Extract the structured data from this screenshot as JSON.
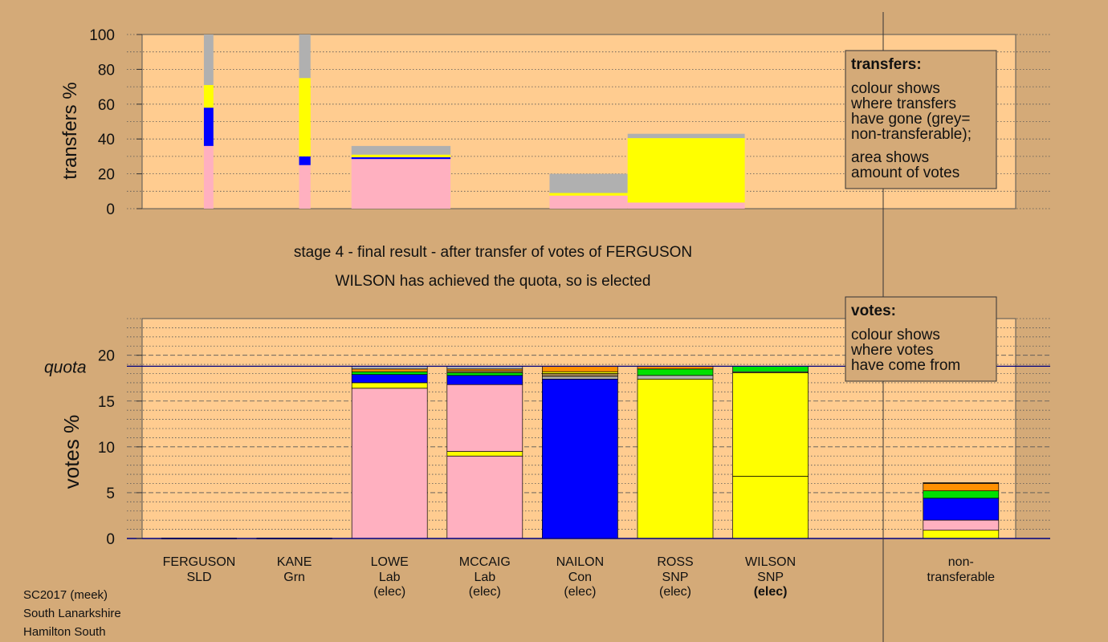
{
  "colors": {
    "background": "#d4aa78",
    "plot_bg": "#ffcc90",
    "pink": "#ffb0c0",
    "blue": "#0000ff",
    "yellow": "#ffff00",
    "grey": "#b0b0b0",
    "green": "#00e000",
    "orange": "#ff9000",
    "brown": "#a08050",
    "quota_line": "#000080"
  },
  "title_lines": [
    "stage 4 - final result - after transfer of votes of FERGUSON",
    "WILSON has achieved the quota, so is elected"
  ],
  "legend_transfers": {
    "heading": "transfers:",
    "lines": [
      "colour shows",
      "where transfers",
      "have gone (grey=",
      "non-transferable);"
    ],
    "lines2": [
      "area shows",
      "amount of votes"
    ]
  },
  "legend_votes": {
    "heading": "votes:",
    "lines": [
      "colour shows",
      "where votes",
      "have come from"
    ]
  },
  "footer": [
    "SC2017 (meek)",
    "South Lanarkshire",
    "Hamilton South"
  ],
  "chart_data": [
    {
      "type": "bar",
      "name": "transfers",
      "ylabel": "transfers %",
      "ylim": [
        0,
        100
      ],
      "yticks": [
        0,
        20,
        40,
        60,
        80,
        100
      ],
      "bars": [
        {
          "x_from": 0.55,
          "x_to": 0.65,
          "segments": [
            {
              "color": "pink",
              "from": 0,
              "to": 36
            },
            {
              "color": "blue",
              "from": 36,
              "to": 58
            },
            {
              "color": "yellow",
              "from": 58,
              "to": 71
            },
            {
              "color": "grey",
              "from": 71,
              "to": 100
            }
          ]
        },
        {
          "x_from": 1.55,
          "x_to": 1.67,
          "segments": [
            {
              "color": "pink",
              "from": 0,
              "to": 25
            },
            {
              "color": "blue",
              "from": 25,
              "to": 30
            },
            {
              "color": "yellow",
              "from": 30,
              "to": 75
            },
            {
              "color": "grey",
              "from": 75,
              "to": 100
            }
          ]
        },
        {
          "x_from": 2.1,
          "x_to": 3.14,
          "segments": [
            {
              "color": "pink",
              "from": 0,
              "to": 28.5
            },
            {
              "color": "blue",
              "from": 28.5,
              "to": 29.5
            },
            {
              "color": "yellow",
              "from": 29.5,
              "to": 31
            },
            {
              "color": "grey",
              "from": 31,
              "to": 36
            }
          ]
        },
        {
          "x_from": 4.18,
          "x_to": 5.0,
          "segments": [
            {
              "color": "pink",
              "from": 0,
              "to": 7.5
            },
            {
              "color": "yellow",
              "from": 7.5,
              "to": 9
            },
            {
              "color": "grey",
              "from": 9,
              "to": 20
            }
          ]
        },
        {
          "x_from": 5.0,
          "x_to": 6.23,
          "segments": [
            {
              "color": "pink",
              "from": 0,
              "to": 3.5
            },
            {
              "color": "yellow",
              "from": 3.5,
              "to": 40.5
            },
            {
              "color": "grey",
              "from": 40.5,
              "to": 43
            }
          ]
        }
      ]
    },
    {
      "type": "bar",
      "name": "votes",
      "ylabel": "votes %",
      "ylim": [
        0,
        24
      ],
      "yticks": [
        0,
        5,
        10,
        15,
        20
      ],
      "quota": 18.8,
      "quota_label": "quota",
      "categories": [
        {
          "name": "FERGUSON",
          "party": "SLD",
          "status": ""
        },
        {
          "name": "KANE",
          "party": "Grn",
          "status": ""
        },
        {
          "name": "LOWE",
          "party": "Lab",
          "status": "(elec)"
        },
        {
          "name": "MCCAIG",
          "party": "Lab",
          "status": "(elec)"
        },
        {
          "name": "NAILON",
          "party": "Con",
          "status": "(elec)"
        },
        {
          "name": "ROSS",
          "party": "SNP",
          "status": "(elec)"
        },
        {
          "name": "WILSON",
          "party": "SNP",
          "status": "(elec)",
          "bold_status": true
        },
        {
          "name": "",
          "party": "",
          "status": ""
        },
        {
          "name": "non-",
          "party": "transferable",
          "status": ""
        }
      ],
      "stacks": [
        [],
        [],
        [
          {
            "color": "pink",
            "from": 0,
            "to": 16.4
          },
          {
            "color": "yellow",
            "from": 16.4,
            "to": 17.0
          },
          {
            "color": "blue",
            "from": 17.0,
            "to": 17.9
          },
          {
            "color": "green",
            "from": 17.9,
            "to": 18.2
          },
          {
            "color": "orange",
            "from": 18.2,
            "to": 18.5
          },
          {
            "color": "grey",
            "from": 18.5,
            "to": 18.8
          }
        ],
        [
          {
            "color": "pink",
            "from": 0,
            "to": 9.0
          },
          {
            "color": "yellow",
            "from": 9.0,
            "to": 9.5
          },
          {
            "color": "pink",
            "from": 9.5,
            "to": 16.8
          },
          {
            "color": "blue",
            "from": 16.8,
            "to": 17.8
          },
          {
            "color": "green",
            "from": 17.8,
            "to": 18.1
          },
          {
            "color": "brown",
            "from": 18.1,
            "to": 18.3
          },
          {
            "color": "orange",
            "from": 18.3,
            "to": 18.5
          },
          {
            "color": "grey",
            "from": 18.5,
            "to": 18.8
          }
        ],
        [
          {
            "color": "blue",
            "from": 0,
            "to": 17.4
          },
          {
            "color": "grey",
            "from": 17.4,
            "to": 17.7
          },
          {
            "color": "brown",
            "from": 17.7,
            "to": 18.0
          },
          {
            "color": "yellow",
            "from": 18.0,
            "to": 18.2
          },
          {
            "color": "orange",
            "from": 18.2,
            "to": 18.8
          }
        ],
        [
          {
            "color": "yellow",
            "from": 0,
            "to": 17.4
          },
          {
            "color": "grey",
            "from": 17.4,
            "to": 17.8
          },
          {
            "color": "green",
            "from": 17.8,
            "to": 18.5
          },
          {
            "color": "orange",
            "from": 18.5,
            "to": 18.8
          }
        ],
        [
          {
            "color": "yellow",
            "from": 0,
            "to": 6.8
          },
          {
            "color": "yellow",
            "from": 6.8,
            "to": 18.1
          },
          {
            "color": "grey",
            "from": 18.1,
            "to": 18.2
          },
          {
            "color": "green",
            "from": 18.2,
            "to": 18.8
          }
        ],
        [],
        [
          {
            "color": "yellow",
            "from": 0,
            "to": 0.9
          },
          {
            "color": "pink",
            "from": 0.9,
            "to": 2.0
          },
          {
            "color": "blue",
            "from": 2.0,
            "to": 4.4
          },
          {
            "color": "green",
            "from": 4.4,
            "to": 5.2
          },
          {
            "color": "orange",
            "from": 5.2,
            "to": 6.0
          },
          {
            "color": "brown",
            "from": 6.0,
            "to": 6.1
          }
        ]
      ]
    }
  ]
}
